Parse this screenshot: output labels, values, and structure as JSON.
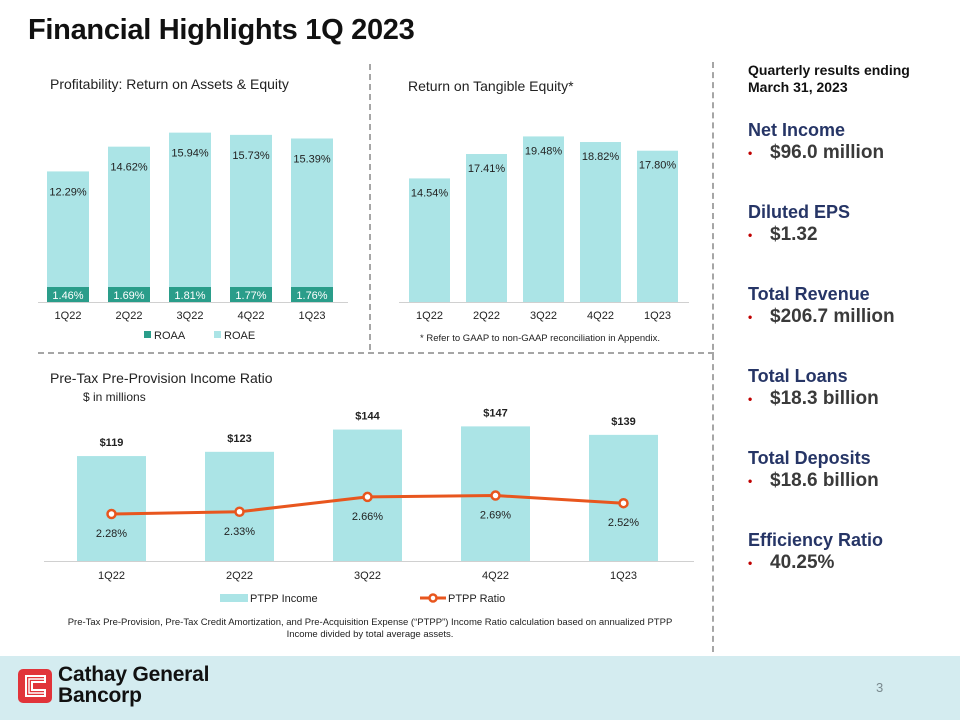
{
  "page": {
    "title": "Financial Highlights 1Q 2023",
    "page_number": "3"
  },
  "colors": {
    "roaa": "#2a9d8a",
    "light_teal": "#abe4e6",
    "ptpp_line": "#e8561e",
    "kpi_label": "#263566",
    "bullet": "#c00000",
    "footer_bg": "#d4ecf0",
    "logo_red": "#e1343a"
  },
  "chart_data": [
    {
      "id": "profitability",
      "type": "bar",
      "title": "Profitability: Return on Assets & Equity",
      "categories": [
        "1Q22",
        "2Q22",
        "3Q22",
        "4Q22",
        "1Q23"
      ],
      "series": [
        {
          "name": "ROAA",
          "values": [
            1.46,
            1.69,
            1.81,
            1.77,
            1.76
          ],
          "labels": [
            "1.46%",
            "1.69%",
            "1.81%",
            "1.77%",
            "1.76%"
          ],
          "color": "#2a9d8a"
        },
        {
          "name": "ROAE",
          "values": [
            12.29,
            14.62,
            15.94,
            15.73,
            15.39
          ],
          "labels": [
            "12.29%",
            "14.62%",
            "15.94%",
            "15.73%",
            "15.39%"
          ],
          "color": "#abe4e6"
        }
      ],
      "legend": [
        "ROAA",
        "ROAE"
      ],
      "legend_position": "bottom",
      "grid": false,
      "ylim": [
        0,
        16
      ]
    },
    {
      "id": "rote",
      "type": "bar",
      "title": "Return on Tangible Equity*",
      "categories": [
        "1Q22",
        "2Q22",
        "3Q22",
        "4Q22",
        "1Q23"
      ],
      "values": [
        14.54,
        17.41,
        19.48,
        18.82,
        17.8
      ],
      "labels": [
        "14.54%",
        "17.41%",
        "19.48%",
        "18.82%",
        "17.80%"
      ],
      "footnote": "* Refer to GAAP to non-GAAP reconciliation in Appendix.",
      "grid": false,
      "ylim": [
        0,
        20
      ]
    },
    {
      "id": "ptpp",
      "type": "bar",
      "title": "Pre-Tax Pre-Provision Income Ratio",
      "subtitle": "$ in millions",
      "categories": [
        "1Q22",
        "2Q22",
        "3Q22",
        "4Q22",
        "1Q23"
      ],
      "series": [
        {
          "name": "PTPP Income",
          "type": "bar",
          "values": [
            119,
            123,
            144,
            147,
            139
          ],
          "labels": [
            "$119",
            "$123",
            "$144",
            "$147",
            "$139"
          ]
        },
        {
          "name": "PTPP Ratio",
          "type": "line",
          "values": [
            2.28,
            2.33,
            2.66,
            2.69,
            2.52
          ],
          "labels": [
            "2.28%",
            "2.33%",
            "2.66%",
            "2.69%",
            "2.52%"
          ]
        }
      ],
      "legend": [
        "PTPP Income",
        "PTPP Ratio"
      ],
      "legend_position": "bottom",
      "grid": false,
      "footnote": "Pre-Tax Pre-Provision, Pre-Tax Credit Amortization, and Pre-Acquisition Expense (“PTPP”) Income Ratio calculation based on annualized PTPP  Income divided by total average assets."
    }
  ],
  "sidebar": {
    "heading_line1": "Quarterly results ending",
    "heading_line2": "March 31, 2023",
    "kpis": [
      {
        "label": "Net Income",
        "value": "$96.0 million"
      },
      {
        "label": "Diluted EPS",
        "value": "$1.32"
      },
      {
        "label": "Total Revenue",
        "value": "$206.7 million"
      },
      {
        "label": "Total Loans",
        "value": "$18.3 billion"
      },
      {
        "label": "Total Deposits",
        "value": "$18.6 billion"
      },
      {
        "label": "Efficiency Ratio",
        "value": "40.25%"
      }
    ]
  },
  "footer": {
    "company_line1": "Cathay General",
    "company_line2": "Bancorp",
    "logo_icon": "cathay-logo-icon"
  }
}
